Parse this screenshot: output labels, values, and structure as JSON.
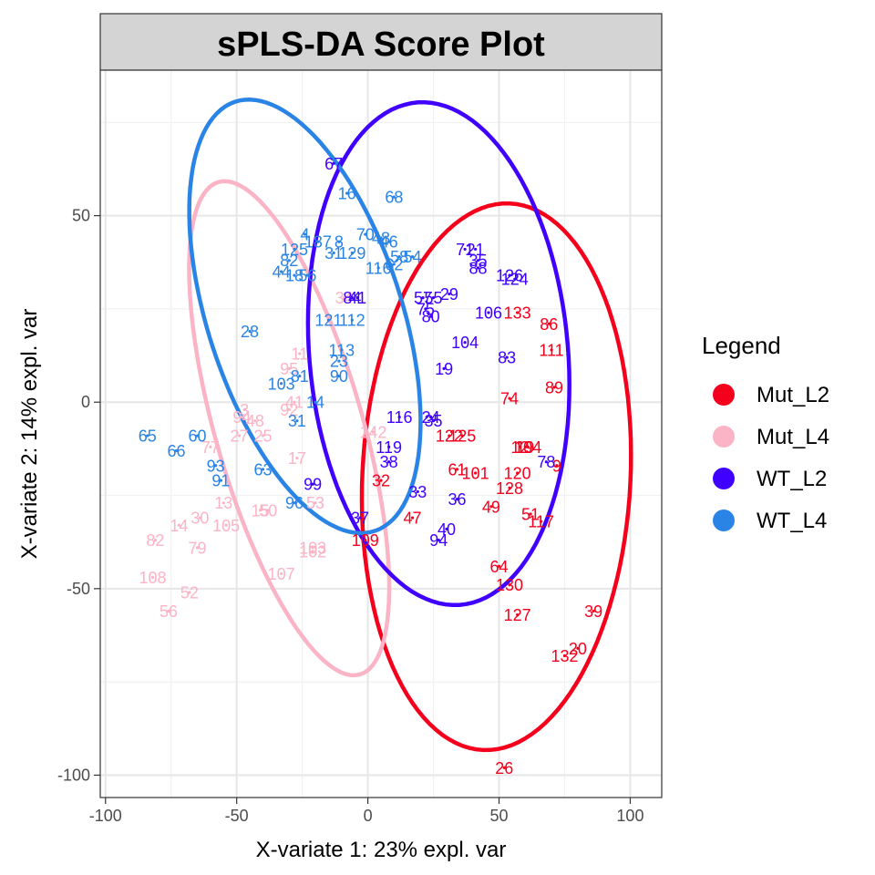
{
  "chart_data": {
    "type": "scatter",
    "title": "sPLS-DA Score Plot",
    "xlabel": "X-variate 1: 23% expl. var",
    "ylabel": "X-variate 2: 14% expl. var",
    "xlim": [
      -102,
      112
    ],
    "ylim": [
      -106,
      89
    ],
    "xticks": [
      -100,
      -50,
      0,
      50,
      100
    ],
    "yticks": [
      -100,
      -50,
      0,
      50
    ],
    "grid": true,
    "legend": {
      "title": "Legend",
      "position": "right",
      "entries": [
        {
          "name": "Mut_L2",
          "color": "#f5001c"
        },
        {
          "name": "Mut_L4",
          "color": "#fbb4c6"
        },
        {
          "name": "WT_L2",
          "color": "#3f00ff"
        },
        {
          "name": "WT_L4",
          "color": "#2a84e6"
        }
      ]
    },
    "series": [
      {
        "name": "Mut_L2",
        "color": "#f5001c",
        "ellipse": {
          "cx": 49,
          "cy": -20,
          "rx": 51,
          "ry": 73.5,
          "angle": -6
        },
        "points": [
          {
            "label": "26",
            "x": 52,
            "y": -98
          },
          {
            "label": "132",
            "x": 75,
            "y": -68
          },
          {
            "label": "20",
            "x": 80,
            "y": -66
          },
          {
            "label": "39",
            "x": 86,
            "y": -56
          },
          {
            "label": "127",
            "x": 57,
            "y": -57
          },
          {
            "label": "130",
            "x": 54,
            "y": -49
          },
          {
            "label": "64",
            "x": 50,
            "y": -44
          },
          {
            "label": "117",
            "x": 66,
            "y": -32
          },
          {
            "label": "51",
            "x": 62,
            "y": -30
          },
          {
            "label": "49",
            "x": 47,
            "y": -28
          },
          {
            "label": "47",
            "x": 17,
            "y": -31
          },
          {
            "label": "109",
            "x": -1,
            "y": -37
          },
          {
            "label": "32",
            "x": 5,
            "y": -21
          },
          {
            "label": "61",
            "x": 34,
            "y": -18
          },
          {
            "label": "101",
            "x": 41,
            "y": -19
          },
          {
            "label": "120",
            "x": 57,
            "y": -19
          },
          {
            "label": "128",
            "x": 54,
            "y": -23
          },
          {
            "label": "9",
            "x": 72,
            "y": -17
          },
          {
            "label": "19",
            "x": 60,
            "y": -12
          },
          {
            "label": "104",
            "x": 61,
            "y": -12
          },
          {
            "label": "125",
            "x": 36,
            "y": -9
          },
          {
            "label": "122",
            "x": 31,
            "y": -9
          },
          {
            "label": "12",
            "x": 58,
            "y": -12
          },
          {
            "label": "74",
            "x": 54,
            "y": 1
          },
          {
            "label": "89",
            "x": 71,
            "y": 4
          },
          {
            "label": "111",
            "x": 70,
            "y": 14
          },
          {
            "label": "86",
            "x": 69,
            "y": 21
          },
          {
            "label": "133",
            "x": 57,
            "y": 24
          }
        ]
      },
      {
        "name": "Mut_L4",
        "color": "#fbb4c6",
        "ellipse": {
          "cx": -30,
          "cy": -7,
          "rx": 27,
          "ry": 71.5,
          "angle": 24
        },
        "points": [
          {
            "label": "56",
            "x": -76,
            "y": -56
          },
          {
            "label": "52",
            "x": -68,
            "y": -51
          },
          {
            "label": "108",
            "x": -82,
            "y": -47
          },
          {
            "label": "82",
            "x": -81,
            "y": -37
          },
          {
            "label": "79",
            "x": -65,
            "y": -39
          },
          {
            "label": "14",
            "x": -72,
            "y": -33
          },
          {
            "label": "30",
            "x": -64,
            "y": -31
          },
          {
            "label": "105",
            "x": -54,
            "y": -33
          },
          {
            "label": "13",
            "x": -55,
            "y": -27
          },
          {
            "label": "15",
            "x": -41,
            "y": -29
          },
          {
            "label": "50",
            "x": -38,
            "y": -29
          },
          {
            "label": "53",
            "x": -20,
            "y": -27
          },
          {
            "label": "107",
            "x": -33,
            "y": -46
          },
          {
            "label": "102",
            "x": -21,
            "y": -40
          },
          {
            "label": "103",
            "x": -21,
            "y": -39
          },
          {
            "label": "17",
            "x": -27,
            "y": -15
          },
          {
            "label": "77",
            "x": -60,
            "y": -12
          },
          {
            "label": "27",
            "x": -49,
            "y": -9
          },
          {
            "label": "25",
            "x": -40,
            "y": -9
          },
          {
            "label": "94",
            "x": -48,
            "y": -4
          },
          {
            "label": "48",
            "x": -43,
            "y": -5
          },
          {
            "label": "3",
            "x": -47,
            "y": -2
          },
          {
            "label": "92",
            "x": -30,
            "y": -2
          },
          {
            "label": "41",
            "x": -28,
            "y": 0
          },
          {
            "label": "95",
            "x": -30,
            "y": 9
          },
          {
            "label": "11",
            "x": -26,
            "y": 13
          },
          {
            "label": "142",
            "x": 2,
            "y": -8
          },
          {
            "label": "34",
            "x": -9,
            "y": 28
          }
        ]
      },
      {
        "name": "WT_L2",
        "color": "#3f00ff",
        "ellipse": {
          "cx": 27,
          "cy": 13,
          "rx": 49,
          "ry": 68,
          "angle": 11
        },
        "points": [
          {
            "label": "67",
            "x": -13,
            "y": 64
          },
          {
            "label": "71",
            "x": 37,
            "y": 41
          },
          {
            "label": "21",
            "x": 41,
            "y": 41
          },
          {
            "label": "35",
            "x": 42,
            "y": 38
          },
          {
            "label": "88",
            "x": 42,
            "y": 36
          },
          {
            "label": "126",
            "x": 54,
            "y": 34
          },
          {
            "label": "124",
            "x": 56,
            "y": 33
          },
          {
            "label": "57",
            "x": 21,
            "y": 28
          },
          {
            "label": "55",
            "x": 25,
            "y": 28
          },
          {
            "label": "29",
            "x": 31,
            "y": 29
          },
          {
            "label": "75",
            "x": 22,
            "y": 25
          },
          {
            "label": "80",
            "x": 24,
            "y": 23
          },
          {
            "label": "106",
            "x": 46,
            "y": 24
          },
          {
            "label": "104",
            "x": 37,
            "y": 16
          },
          {
            "label": "83",
            "x": 53,
            "y": 12
          },
          {
            "label": "19",
            "x": 29,
            "y": 9
          },
          {
            "label": "116",
            "x": 12,
            "y": -4
          },
          {
            "label": "24",
            "x": 24,
            "y": -4
          },
          {
            "label": "35",
            "x": 25,
            "y": -5
          },
          {
            "label": "119",
            "x": 8,
            "y": -12
          },
          {
            "label": "38",
            "x": 8,
            "y": -16
          },
          {
            "label": "78",
            "x": 68,
            "y": -16
          },
          {
            "label": "33",
            "x": 19,
            "y": -24
          },
          {
            "label": "36",
            "x": 34,
            "y": -26
          },
          {
            "label": "37",
            "x": -3,
            "y": -31
          },
          {
            "label": "40",
            "x": 30,
            "y": -34
          },
          {
            "label": "94",
            "x": 27,
            "y": -37
          },
          {
            "label": "99",
            "x": -21,
            "y": -22
          },
          {
            "label": "84",
            "x": -6,
            "y": 28
          },
          {
            "label": "41",
            "x": -4,
            "y": 28
          }
        ]
      },
      {
        "name": "WT_L4",
        "color": "#2a84e6",
        "ellipse": {
          "cx": -24,
          "cy": 23,
          "rx": 35,
          "ry": 64,
          "angle": 30
        },
        "points": [
          {
            "label": "65",
            "x": -84,
            "y": -9
          },
          {
            "label": "66",
            "x": -73,
            "y": -13
          },
          {
            "label": "60",
            "x": -65,
            "y": -9
          },
          {
            "label": "93",
            "x": -58,
            "y": -17
          },
          {
            "label": "91",
            "x": -56,
            "y": -21
          },
          {
            "label": "63",
            "x": -40,
            "y": -18
          },
          {
            "label": "96",
            "x": -28,
            "y": -27
          },
          {
            "label": "28",
            "x": -45,
            "y": 19
          },
          {
            "label": "31",
            "x": -27,
            "y": -5
          },
          {
            "label": "14",
            "x": -20,
            "y": 0
          },
          {
            "label": "103",
            "x": -33,
            "y": 5
          },
          {
            "label": "81",
            "x": -26,
            "y": 7
          },
          {
            "label": "90",
            "x": -11,
            "y": 7
          },
          {
            "label": "23",
            "x": -11,
            "y": 11
          },
          {
            "label": "113",
            "x": -10,
            "y": 14
          },
          {
            "label": "121",
            "x": -15,
            "y": 22
          },
          {
            "label": "112",
            "x": -6,
            "y": 22
          },
          {
            "label": "44",
            "x": -33,
            "y": 35
          },
          {
            "label": "18",
            "x": -28,
            "y": 34
          },
          {
            "label": "56",
            "x": -23,
            "y": 34
          },
          {
            "label": "82",
            "x": -30,
            "y": 38
          },
          {
            "label": "125",
            "x": -28,
            "y": 41
          },
          {
            "label": "4",
            "x": -24,
            "y": 45
          },
          {
            "label": "187",
            "x": -19,
            "y": 43
          },
          {
            "label": "8",
            "x": -11,
            "y": 43
          },
          {
            "label": "31",
            "x": -13,
            "y": 40
          },
          {
            "label": "129",
            "x": -6,
            "y": 40
          },
          {
            "label": "70",
            "x": -1,
            "y": 45
          },
          {
            "label": "48",
            "x": 5,
            "y": 44
          },
          {
            "label": "46",
            "x": 8,
            "y": 43
          },
          {
            "label": "116",
            "x": 4,
            "y": 36
          },
          {
            "label": "62",
            "x": 10,
            "y": 37
          },
          {
            "label": "58",
            "x": 12,
            "y": 39
          },
          {
            "label": "54",
            "x": 17,
            "y": 39
          },
          {
            "label": "16",
            "x": -8,
            "y": 56
          },
          {
            "label": "68",
            "x": 10,
            "y": 55
          }
        ]
      }
    ]
  }
}
